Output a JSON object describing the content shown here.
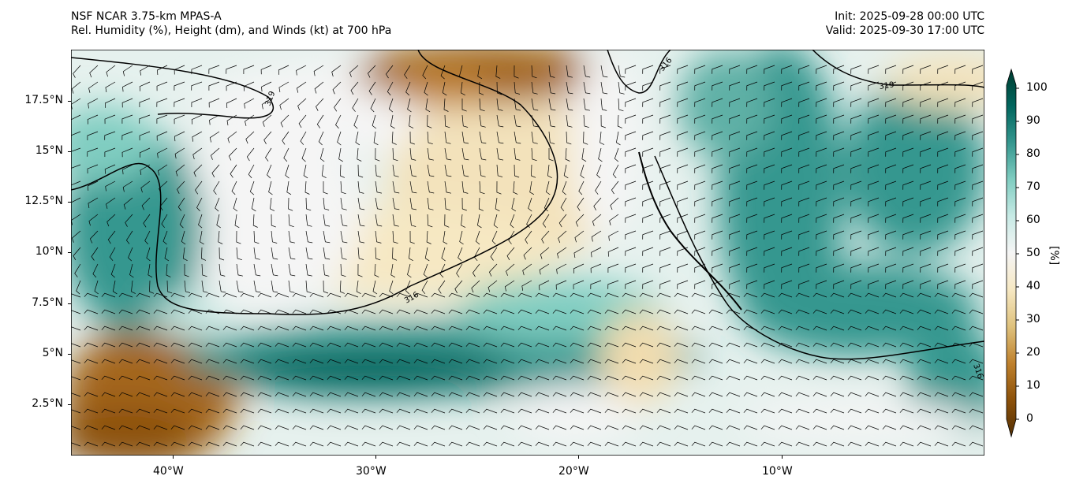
{
  "header": {
    "model": "NSF NCAR 3.75-km MPAS-A",
    "field": "Rel. Humidity (%), Height (dm), and Winds (kt) at 700 hPa",
    "init": "Init: 2025-09-28 00:00 UTC",
    "valid": "Valid: 2025-09-30 17:00 UTC"
  },
  "axes": {
    "lon_labels": [
      "40°W",
      "30°W",
      "20°W",
      "10°W"
    ],
    "lat_labels": [
      "17.5°N",
      "15°N",
      "12.5°N",
      "10°N",
      "7.5°N",
      "5°N",
      "2.5°N"
    ]
  },
  "contours": {
    "labels": [
      "319",
      "316",
      "316",
      "316",
      "319"
    ]
  },
  "colorbar": {
    "label": "[%]",
    "ticks": [
      "100",
      "90",
      "80",
      "70",
      "60",
      "50",
      "40",
      "30",
      "20",
      "10",
      "0"
    ],
    "colors": [
      "#543005",
      "#8c510a",
      "#bf812d",
      "#dfc27d",
      "#f6e8c3",
      "#f5f5f5",
      "#c7eae5",
      "#80cdc1",
      "#35978f",
      "#01665e",
      "#003c30"
    ]
  }
}
